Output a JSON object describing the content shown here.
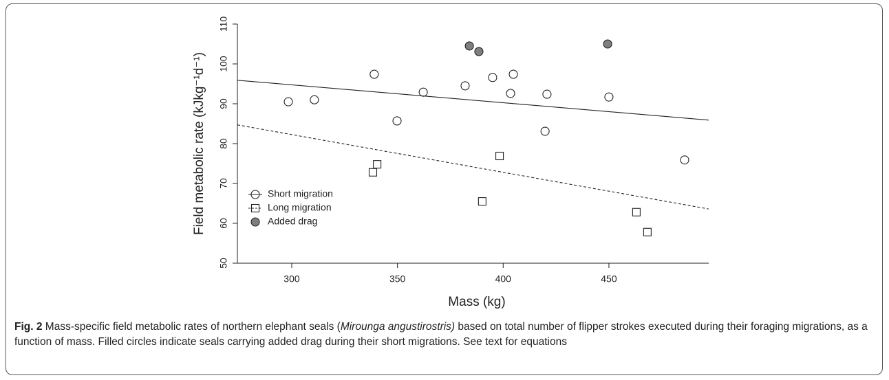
{
  "chart_data": {
    "type": "scatter",
    "xlabel": "Mass (kg)",
    "ylabel": "Field metabolic rate (kJkg⁻¹d⁻¹)",
    "xlim": [
      274.3,
      497.2
    ],
    "ylim": [
      50,
      110
    ],
    "xticks": [
      300,
      350,
      400,
      450
    ],
    "yticks": [
      50,
      60,
      70,
      80,
      90,
      100,
      110
    ],
    "legend": "bottom-left",
    "series": [
      {
        "name": "Short migration",
        "marker": "circle",
        "color": "#222222",
        "fill": "none",
        "x": [
          298.4,
          310.7,
          339.0,
          349.8,
          362.2,
          382.0,
          395.0,
          404.8,
          403.5,
          420.7,
          419.8,
          450.0,
          485.8
        ],
        "values": [
          90.5,
          91.0,
          97.4,
          85.7,
          92.9,
          94.5,
          96.6,
          97.4,
          92.6,
          92.4,
          83.1,
          91.7,
          75.9
        ],
        "fit": {
          "style": "solid",
          "x": [
            274.3,
            497.2
          ],
          "values": [
            95.9,
            85.9
          ]
        }
      },
      {
        "name": "Long migration",
        "marker": "square",
        "color": "#222222",
        "fill": "none",
        "x": [
          338.4,
          340.4,
          390.1,
          398.3,
          463.0,
          468.2
        ],
        "values": [
          72.8,
          74.8,
          65.5,
          76.9,
          62.8,
          57.8
        ],
        "fit": {
          "style": "dashed",
          "x": [
            274.3,
            497.2
          ],
          "values": [
            84.7,
            63.6
          ]
        }
      },
      {
        "name": "Added drag",
        "marker": "circle",
        "color": "#222222",
        "fill": "#7f7f7f",
        "x": [
          384.0,
          388.5,
          449.4
        ],
        "values": [
          104.5,
          103.1,
          105.0
        ]
      }
    ]
  },
  "caption": {
    "label": "Fig. 2",
    "text_before": " Mass-specific field metabolic rates of northern elephant seals (",
    "italic": "Mirounga angustirostris)",
    "text_after": " based on total number of flipper strokes executed during their foraging migrations, as a function of mass. Filled circles indicate seals carrying added drag during their short migrations. See text for equations"
  }
}
